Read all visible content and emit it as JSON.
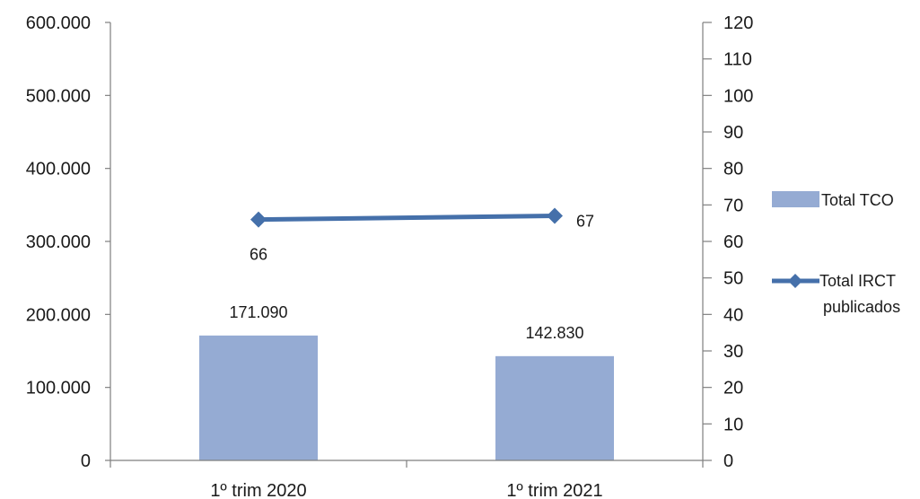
{
  "chart_data": {
    "type": "bar",
    "categories": [
      "1º trim 2020",
      "1º trim 2021"
    ],
    "series": [
      {
        "name": "Total TCO",
        "type": "bar",
        "axis": "left",
        "values": [
          171090,
          142830
        ],
        "value_labels": [
          "171.090",
          "142.830"
        ],
        "color": "#95abd3"
      },
      {
        "name": "Total IRCT publicados",
        "type": "line",
        "axis": "right",
        "marker": "diamond",
        "values": [
          66,
          67
        ],
        "value_labels": [
          "66",
          "67"
        ],
        "color": "#4570aa"
      }
    ],
    "left_axis": {
      "min": 0,
      "max": 600000,
      "step": 100000,
      "tick_labels": [
        "0",
        "100.000",
        "200.000",
        "300.000",
        "400.000",
        "500.000",
        "600.000"
      ]
    },
    "right_axis": {
      "min": 0,
      "max": 120,
      "step": 10,
      "tick_labels": [
        "0",
        "10",
        "20",
        "30",
        "40",
        "50",
        "60",
        "70",
        "80",
        "90",
        "100",
        "110",
        "120"
      ]
    },
    "legend": {
      "placement": "right",
      "entries": [
        "Total TCO",
        "Total IRCT publicados"
      ]
    },
    "grid": false
  }
}
